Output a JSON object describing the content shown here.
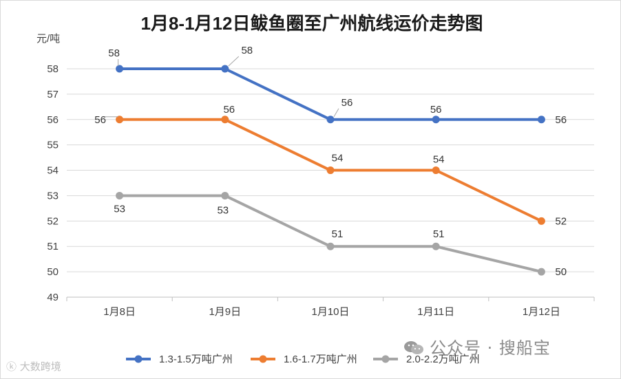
{
  "chart_data": {
    "type": "line",
    "title": "1月8-1月12日鲅鱼圈至广州航线运价走势图",
    "ylabel": "元/吨",
    "xlabel": "",
    "categories": [
      "1月8日",
      "1月9日",
      "1月10日",
      "1月11日",
      "1月12日"
    ],
    "ylim": [
      49,
      58
    ],
    "yticks": [
      49,
      50,
      51,
      52,
      53,
      54,
      55,
      56,
      57,
      58
    ],
    "grid": true,
    "legend_position": "bottom",
    "series": [
      {
        "name": "1.3-1.5万吨广州",
        "color": "#4472c4",
        "values": [
          58,
          58,
          56,
          56,
          56
        ]
      },
      {
        "name": "1.6-1.7万吨广州",
        "color": "#ed7d31",
        "values": [
          56,
          56,
          54,
          54,
          52
        ]
      },
      {
        "name": "2.0-2.2万吨广州",
        "color": "#a5a5a5",
        "values": [
          53,
          53,
          51,
          51,
          50
        ]
      }
    ]
  },
  "watermarks": {
    "public_account": "公众号 · 搜船宝",
    "public_account_icon": "wechat-icon",
    "source": "大数跨境",
    "source_icon": "logo-icon"
  }
}
